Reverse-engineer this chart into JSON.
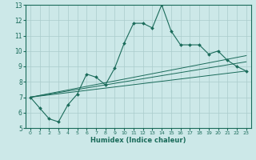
{
  "xlabel": "Humidex (Indice chaleur)",
  "bg_color": "#cce8e8",
  "line_color": "#1a6b5a",
  "grid_color": "#aacccc",
  "xlim": [
    -0.5,
    23.5
  ],
  "ylim": [
    5,
    13
  ],
  "xticks": [
    0,
    1,
    2,
    3,
    4,
    5,
    6,
    7,
    8,
    9,
    10,
    11,
    12,
    13,
    14,
    15,
    16,
    17,
    18,
    19,
    20,
    21,
    22,
    23
  ],
  "yticks": [
    5,
    6,
    7,
    8,
    9,
    10,
    11,
    12,
    13
  ],
  "main_x": [
    0,
    1,
    2,
    3,
    4,
    5,
    6,
    7,
    8,
    9,
    10,
    11,
    12,
    13,
    14,
    15,
    16,
    17,
    18,
    19,
    20,
    21,
    22,
    23
  ],
  "main_y": [
    7.0,
    6.3,
    5.6,
    5.4,
    6.5,
    7.2,
    8.5,
    8.3,
    7.8,
    8.9,
    10.5,
    11.8,
    11.8,
    11.5,
    13.0,
    11.3,
    10.4,
    10.4,
    10.4,
    9.8,
    10.0,
    9.4,
    9.0,
    8.7
  ],
  "line1_x": [
    0,
    23
  ],
  "line1_y": [
    7.0,
    8.7
  ],
  "line2_x": [
    0,
    23
  ],
  "line2_y": [
    7.0,
    9.3
  ],
  "line3_x": [
    0,
    23
  ],
  "line3_y": [
    7.0,
    9.7
  ]
}
